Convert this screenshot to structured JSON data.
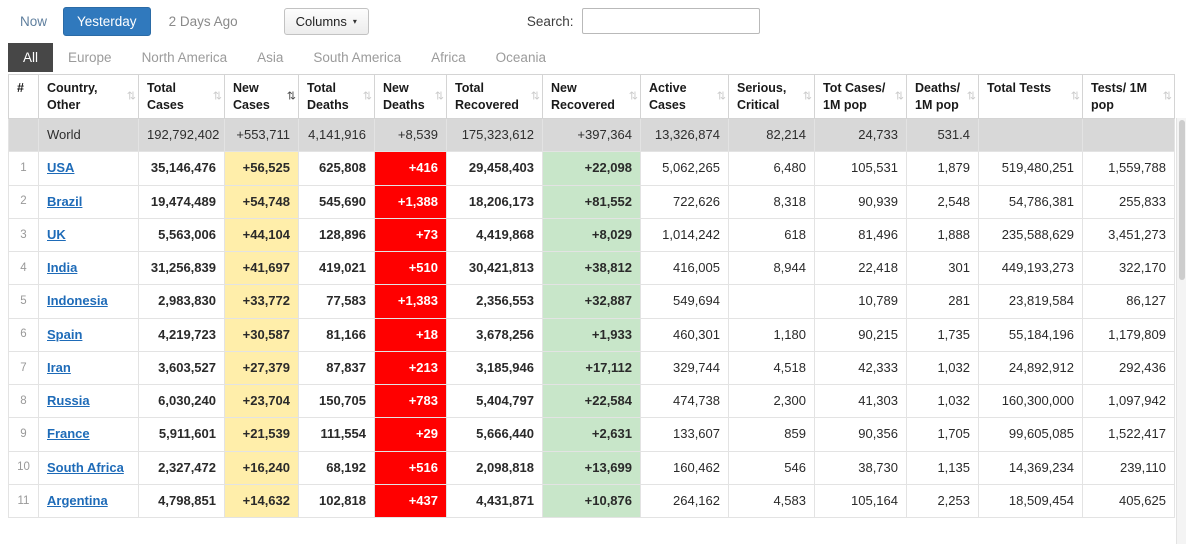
{
  "colors": {
    "accent_blue": "#3079BD",
    "new_cases_bg": "#FFEEAA",
    "new_deaths_bg": "#FF0000",
    "new_recovered_bg": "#C8E6C9",
    "world_row_bg": "#D8D8D8",
    "link_blue": "#1E6BB8",
    "active_tab_bg": "#474747"
  },
  "toolbar": {
    "now": "Now",
    "yesterday": "Yesterday",
    "two_days_ago": "2 Days Ago",
    "columns": "Columns",
    "columns_caret": "▾",
    "search_label": "Search:",
    "search_value": ""
  },
  "tabs": {
    "active": "All",
    "items": [
      "All",
      "Europe",
      "North America",
      "Asia",
      "South America",
      "Africa",
      "Oceania"
    ]
  },
  "table": {
    "sort_icon_glyph": "⇅",
    "columns": [
      {
        "label": "#",
        "sortable": false
      },
      {
        "label": "Country, Other",
        "sortable": true
      },
      {
        "label": "Total Cases",
        "sortable": true
      },
      {
        "label": "New Cases",
        "sortable": true,
        "sorted": "desc"
      },
      {
        "label": "Total Deaths",
        "sortable": true
      },
      {
        "label": "New Deaths",
        "sortable": true
      },
      {
        "label": "Total Recovered",
        "sortable": true
      },
      {
        "label": "New Recovered",
        "sortable": true
      },
      {
        "label": "Active Cases",
        "sortable": true
      },
      {
        "label": "Serious, Critical",
        "sortable": true
      },
      {
        "label": "Tot Cases/ 1M pop",
        "sortable": true
      },
      {
        "label": "Deaths/ 1M pop",
        "sortable": true
      },
      {
        "label": "Total Tests",
        "sortable": true
      },
      {
        "label": "Tests/ 1M pop",
        "sortable": true
      }
    ],
    "world_row": [
      "",
      "World",
      "192,792,402",
      "+553,711",
      "4,141,916",
      "+8,539",
      "175,323,612",
      "+397,364",
      "13,326,874",
      "82,214",
      "24,733",
      "531.4",
      "",
      ""
    ],
    "rows": [
      [
        "1",
        "USA",
        "35,146,476",
        "+56,525",
        "625,808",
        "+416",
        "29,458,403",
        "+22,098",
        "5,062,265",
        "6,480",
        "105,531",
        "1,879",
        "519,480,251",
        "1,559,788"
      ],
      [
        "2",
        "Brazil",
        "19,474,489",
        "+54,748",
        "545,690",
        "+1,388",
        "18,206,173",
        "+81,552",
        "722,626",
        "8,318",
        "90,939",
        "2,548",
        "54,786,381",
        "255,833"
      ],
      [
        "3",
        "UK",
        "5,563,006",
        "+44,104",
        "128,896",
        "+73",
        "4,419,868",
        "+8,029",
        "1,014,242",
        "618",
        "81,496",
        "1,888",
        "235,588,629",
        "3,451,273"
      ],
      [
        "4",
        "India",
        "31,256,839",
        "+41,697",
        "419,021",
        "+510",
        "30,421,813",
        "+38,812",
        "416,005",
        "8,944",
        "22,418",
        "301",
        "449,193,273",
        "322,170"
      ],
      [
        "5",
        "Indonesia",
        "2,983,830",
        "+33,772",
        "77,583",
        "+1,383",
        "2,356,553",
        "+32,887",
        "549,694",
        "",
        "10,789",
        "281",
        "23,819,584",
        "86,127"
      ],
      [
        "6",
        "Spain",
        "4,219,723",
        "+30,587",
        "81,166",
        "+18",
        "3,678,256",
        "+1,933",
        "460,301",
        "1,180",
        "90,215",
        "1,735",
        "55,184,196",
        "1,179,809"
      ],
      [
        "7",
        "Iran",
        "3,603,527",
        "+27,379",
        "87,837",
        "+213",
        "3,185,946",
        "+17,112",
        "329,744",
        "4,518",
        "42,333",
        "1,032",
        "24,892,912",
        "292,436"
      ],
      [
        "8",
        "Russia",
        "6,030,240",
        "+23,704",
        "150,705",
        "+783",
        "5,404,797",
        "+22,584",
        "474,738",
        "2,300",
        "41,303",
        "1,032",
        "160,300,000",
        "1,097,942"
      ],
      [
        "9",
        "France",
        "5,911,601",
        "+21,539",
        "111,554",
        "+29",
        "5,666,440",
        "+2,631",
        "133,607",
        "859",
        "90,356",
        "1,705",
        "99,605,085",
        "1,522,417"
      ],
      [
        "10",
        "South Africa",
        "2,327,472",
        "+16,240",
        "68,192",
        "+516",
        "2,098,818",
        "+13,699",
        "160,462",
        "546",
        "38,730",
        "1,135",
        "14,369,234",
        "239,110"
      ],
      [
        "11",
        "Argentina",
        "4,798,851",
        "+14,632",
        "102,818",
        "+437",
        "4,431,871",
        "+10,876",
        "264,162",
        "4,583",
        "105,164",
        "2,253",
        "18,509,454",
        "405,625"
      ]
    ]
  }
}
